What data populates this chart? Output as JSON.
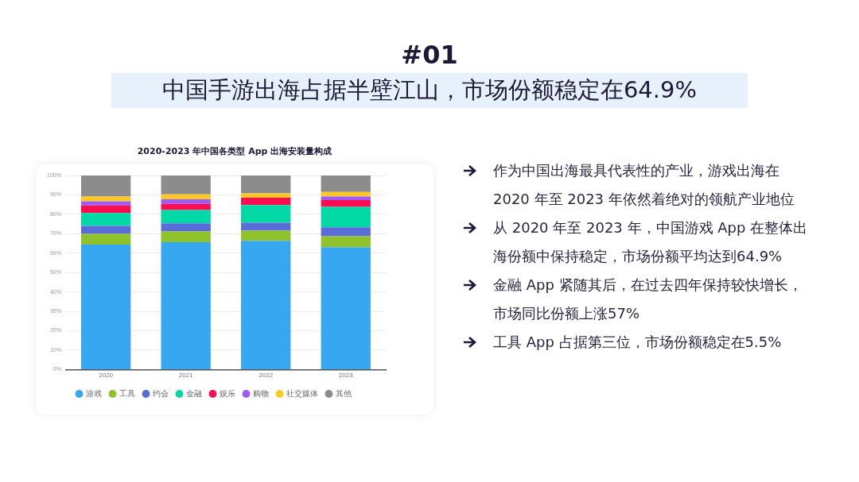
{
  "chart_data": {
    "type": "bar",
    "stacked": true,
    "title": "2020-2023 年中国各类型 App 出海安装量构成",
    "categories": [
      "2020",
      "2021",
      "2022",
      "2023"
    ],
    "series": [
      {
        "name": "游戏",
        "color": "#36a7f0",
        "values": [
          64.4,
          65.6,
          66.3,
          63.1
        ]
      },
      {
        "name": "工具",
        "color": "#8fc22b",
        "values": [
          5.5,
          5.6,
          5.3,
          5.6
        ]
      },
      {
        "name": "约会",
        "color": "#5a6cd8",
        "values": [
          4.1,
          4.1,
          4.1,
          4.6
        ]
      },
      {
        "name": "金融",
        "color": "#00d9a6",
        "values": [
          6.7,
          6.9,
          9.1,
          10.5
        ]
      },
      {
        "name": "娱乐",
        "color": "#fe0c51",
        "values": [
          3.9,
          3.2,
          3.7,
          3.5
        ]
      },
      {
        "name": "购物",
        "color": "#9d5cf7",
        "values": [
          2.1,
          2.3,
          0,
          1.9
        ]
      },
      {
        "name": "社交媒体",
        "color": "#fdc823",
        "values": [
          2.5,
          2.6,
          2.3,
          2.3
        ]
      },
      {
        "name": "其他",
        "color": "#8c8c8c",
        "values": [
          10.8,
          9.7,
          9.2,
          8.5
        ]
      }
    ],
    "ylim": [
      0,
      100
    ],
    "yticks": [
      {
        "value": 0,
        "label": "0%"
      },
      {
        "value": 10,
        "label": "10%"
      },
      {
        "value": 20,
        "label": "20%"
      },
      {
        "value": 30,
        "label": "30%"
      },
      {
        "value": 40,
        "label": "40%"
      },
      {
        "value": 50,
        "label": "50%"
      },
      {
        "value": 60,
        "label": "60%"
      },
      {
        "value": 70,
        "label": "70%"
      },
      {
        "value": 80,
        "label": "80%"
      },
      {
        "value": 90,
        "label": "90%"
      },
      {
        "value": 100,
        "label": "100%"
      }
    ],
    "grid": "y",
    "legend": "bottom",
    "annotations": [
      "#01",
      "中国手游出海占据半壁江山，市场份额稳定在64.9%",
      "作为中国出海最具代表性的产业，游戏出海在 2020 年至 2023 年依然着绝对的领航产业地位",
      "从 2020 年至 2023 年，中国游戏 App 在整体出海份额中保持稳定，市场份额平均达到64.9%",
      "金融 App 紧随其后，在过去四年保持较快增长，市场同比份额上涨57%",
      "工具 App 占据第三位，市场份额稳定在5.5%"
    ]
  }
}
